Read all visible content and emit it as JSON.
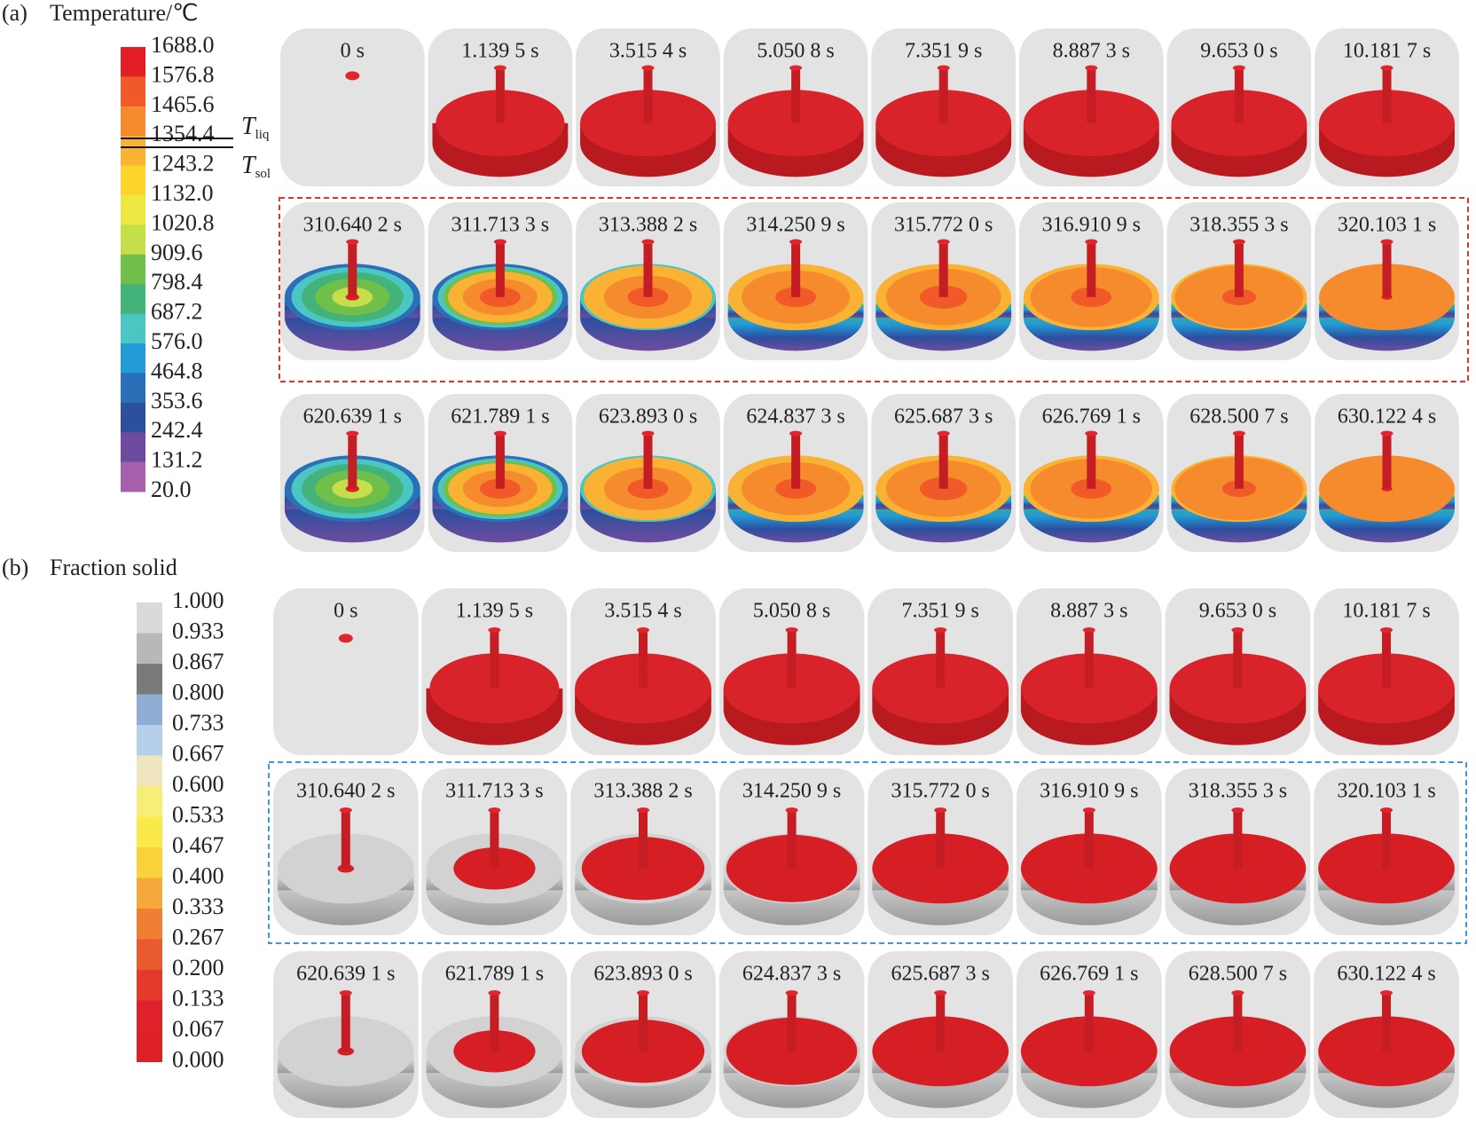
{
  "panel_a": {
    "label": "(a)",
    "title": "Temperature/℃",
    "colorbar_labels": [
      "1688.0",
      "1576.8",
      "1465.6",
      "1354.4",
      "1243.2",
      "1132.0",
      "1020.8",
      "909.6",
      "798.4",
      "687.2",
      "576.0",
      "464.8",
      "353.6",
      "242.4",
      "131.2",
      "20.0"
    ],
    "t_liq": {
      "symbol": "T",
      "subscript": "liq"
    },
    "t_sol": {
      "symbol": "T",
      "subscript": "sol"
    },
    "rows": [
      [
        "0 s",
        "1.139 5 s",
        "3.515 4 s",
        "5.050 8 s",
        "7.351 9 s",
        "8.887 3 s",
        "9.653 0 s",
        "10.181 7 s"
      ],
      [
        "310.640 2 s",
        "311.713 3 s",
        "313.388 2 s",
        "314.250 9 s",
        "315.772 0 s",
        "316.910 9 s",
        "318.355 3 s",
        "320.103 1 s"
      ],
      [
        "620.639 1 s",
        "621.789 1 s",
        "623.893 0 s",
        "624.837 3 s",
        "625.687 3 s",
        "626.769 1 s",
        "628.500 7 s",
        "630.122 4 s"
      ]
    ]
  },
  "panel_b": {
    "label": "(b)",
    "title": "Fraction solid",
    "colorbar_labels": [
      "1.000",
      "0.933",
      "0.867",
      "0.800",
      "0.733",
      "0.667",
      "0.600",
      "0.533",
      "0.467",
      "0.400",
      "0.333",
      "0.267",
      "0.200",
      "0.133",
      "0.067",
      "0.000"
    ],
    "rows": [
      [
        "0 s",
        "1.139 5 s",
        "3.515 4 s",
        "5.050 8 s",
        "7.351 9 s",
        "8.887 3 s",
        "9.653 0 s",
        "10.181 7 s"
      ],
      [
        "310.640 2 s",
        "311.713 3 s",
        "313.388 2 s",
        "314.250 9 s",
        "315.772 0 s",
        "316.910 9 s",
        "318.355 3 s",
        "320.103 1 s"
      ],
      [
        "620.639 1 s",
        "621.789 1 s",
        "623.893 0 s",
        "624.837 3 s",
        "625.687 3 s",
        "626.769 1 s",
        "628.500 7 s",
        "630.122 4 s"
      ]
    ]
  }
}
